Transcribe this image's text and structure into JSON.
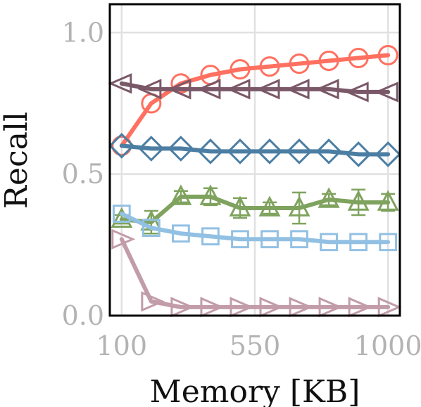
{
  "chart_data": {
    "type": "line",
    "title": "",
    "xlabel": "Memory [KB]",
    "ylabel": "Recall",
    "xlim": [
      60,
      1040
    ],
    "ylim": [
      0,
      1.1
    ],
    "x_ticks": [
      {
        "value": 100,
        "label": "100"
      },
      {
        "value": 550,
        "label": "550"
      },
      {
        "value": 1000,
        "label": "1000"
      }
    ],
    "y_ticks": [
      {
        "value": 0.0,
        "label": "0.0"
      },
      {
        "value": 0.5,
        "label": "0.5"
      },
      {
        "value": 1.0,
        "label": "1.0"
      }
    ],
    "grid": true,
    "x": [
      100,
      200,
      300,
      400,
      500,
      600,
      700,
      800,
      900,
      1000
    ],
    "series": [
      {
        "color": "#ff7060",
        "marker": "circle",
        "values": [
          0.6,
          0.75,
          0.82,
          0.85,
          0.87,
          0.88,
          0.89,
          0.9,
          0.91,
          0.92
        ]
      },
      {
        "color": "#7a5868",
        "marker": "triangle-left",
        "values": [
          0.82,
          0.8,
          0.8,
          0.8,
          0.8,
          0.8,
          0.8,
          0.8,
          0.79,
          0.79
        ]
      },
      {
        "color": "#4c7ea3",
        "marker": "diamond",
        "values": [
          0.6,
          0.59,
          0.59,
          0.58,
          0.58,
          0.58,
          0.58,
          0.58,
          0.57,
          0.57
        ]
      },
      {
        "color": "#7fa35e",
        "marker": "triangle-up",
        "values": [
          0.34,
          0.33,
          0.42,
          0.42,
          0.38,
          0.38,
          0.38,
          0.41,
          0.4,
          0.4
        ],
        "errors": [
          0.015,
          0.04,
          0.02,
          0.03,
          0.035,
          0.02,
          0.055,
          0.02,
          0.045,
          0.03
        ]
      },
      {
        "color": "#92c0e3",
        "marker": "square",
        "values": [
          0.36,
          0.31,
          0.29,
          0.28,
          0.27,
          0.27,
          0.27,
          0.26,
          0.26,
          0.26
        ]
      },
      {
        "color": "#c29ca9",
        "marker": "triangle-right",
        "values": [
          0.27,
          0.05,
          0.03,
          0.03,
          0.03,
          0.03,
          0.03,
          0.03,
          0.03,
          0.03
        ]
      }
    ]
  }
}
